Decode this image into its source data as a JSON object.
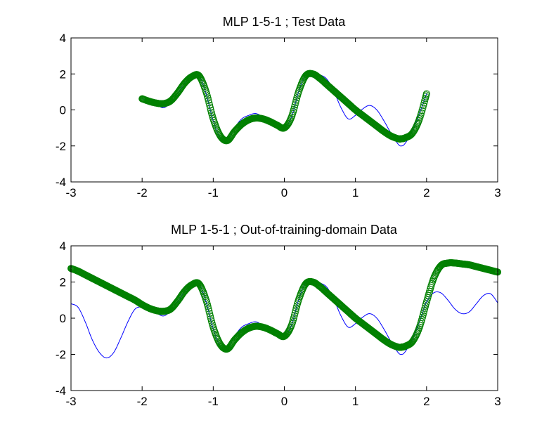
{
  "chart_data": [
    {
      "type": "line",
      "title": "MLP 1-5-1 ; Test Data",
      "xlabel": "",
      "ylabel": "",
      "xlim": [
        -3,
        3
      ],
      "ylim": [
        -4,
        4
      ],
      "xticks": [
        "-3",
        "-2",
        "-1",
        "0",
        "1",
        "2",
        "3"
      ],
      "yticks": [
        "-4",
        "-2",
        "0",
        "2",
        "4"
      ],
      "grid": false,
      "series": [
        {
          "kind": "line",
          "color": "#0000ff",
          "x": [
            -2.0,
            -1.9,
            -1.8,
            -1.7,
            -1.6,
            -1.5,
            -1.4,
            -1.3,
            -1.2,
            -1.1,
            -1.0,
            -0.9,
            -0.8,
            -0.7,
            -0.6,
            -0.5,
            -0.4,
            -0.3,
            -0.2,
            -0.1,
            0.0,
            0.1,
            0.2,
            0.3,
            0.4,
            0.5,
            0.6,
            0.7,
            0.8,
            0.9,
            1.0,
            1.1,
            1.2,
            1.3,
            1.4,
            1.5,
            1.6,
            1.65,
            1.7,
            1.8,
            1.9,
            2.0
          ],
          "y": [
            0.62,
            0.52,
            0.3,
            0.12,
            0.4,
            0.9,
            1.5,
            1.85,
            1.9,
            0.9,
            -0.6,
            -1.55,
            -1.7,
            -1.0,
            -0.5,
            -0.3,
            -0.2,
            -0.4,
            -0.6,
            -0.8,
            -1.0,
            -0.4,
            1.0,
            1.95,
            2.05,
            1.95,
            1.7,
            1.0,
            0.1,
            -0.5,
            -0.3,
            0.05,
            0.25,
            0.0,
            -0.6,
            -1.3,
            -1.9,
            -2.0,
            -1.85,
            -1.2,
            -0.2,
            0.9
          ]
        },
        {
          "kind": "scatter",
          "color": "#008000",
          "x": [
            -2.0,
            -1.9,
            -1.8,
            -1.7,
            -1.6,
            -1.5,
            -1.4,
            -1.3,
            -1.2,
            -1.1,
            -1.0,
            -0.9,
            -0.8,
            -0.7,
            -0.6,
            -0.5,
            -0.4,
            -0.3,
            -0.2,
            -0.1,
            0.0,
            0.1,
            0.2,
            0.3,
            0.4,
            0.5,
            0.6,
            0.7,
            0.8,
            0.9,
            1.0,
            1.1,
            1.2,
            1.3,
            1.4,
            1.5,
            1.6,
            1.65,
            1.7,
            1.8,
            1.9,
            2.0
          ],
          "y": [
            0.62,
            0.48,
            0.38,
            0.35,
            0.5,
            0.95,
            1.5,
            1.85,
            1.9,
            1.0,
            -0.5,
            -1.45,
            -1.7,
            -1.2,
            -0.8,
            -0.55,
            -0.45,
            -0.5,
            -0.65,
            -0.85,
            -1.0,
            -0.4,
            1.0,
            1.9,
            2.0,
            1.75,
            1.4,
            1.05,
            0.7,
            0.35,
            0.0,
            -0.3,
            -0.6,
            -0.9,
            -1.2,
            -1.45,
            -1.6,
            -1.6,
            -1.55,
            -1.3,
            -0.5,
            0.9
          ]
        }
      ]
    },
    {
      "type": "line",
      "title": "MLP 1-5-1 ; Out-of-training-domain Data",
      "xlabel": "",
      "ylabel": "",
      "xlim": [
        -3,
        3
      ],
      "ylim": [
        -4,
        4
      ],
      "xticks": [
        "-3",
        "-2",
        "-1",
        "0",
        "1",
        "2",
        "3"
      ],
      "yticks": [
        "-4",
        "-2",
        "0",
        "2",
        "4"
      ],
      "grid": false,
      "series": [
        {
          "kind": "line",
          "color": "#0000ff",
          "x": [
            -3.0,
            -2.9,
            -2.8,
            -2.7,
            -2.6,
            -2.5,
            -2.4,
            -2.3,
            -2.2,
            -2.1,
            -2.0,
            -1.9,
            -1.8,
            -1.7,
            -1.6,
            -1.5,
            -1.4,
            -1.3,
            -1.2,
            -1.1,
            -1.0,
            -0.9,
            -0.8,
            -0.7,
            -0.6,
            -0.5,
            -0.4,
            -0.3,
            -0.2,
            -0.1,
            0.0,
            0.1,
            0.2,
            0.3,
            0.4,
            0.5,
            0.6,
            0.7,
            0.8,
            0.9,
            1.0,
            1.1,
            1.2,
            1.3,
            1.4,
            1.5,
            1.6,
            1.65,
            1.7,
            1.8,
            1.9,
            2.0,
            2.1,
            2.2,
            2.3,
            2.4,
            2.5,
            2.6,
            2.7,
            2.8,
            2.9,
            3.0
          ],
          "y": [
            0.8,
            0.6,
            -0.2,
            -1.2,
            -1.9,
            -2.2,
            -1.9,
            -1.1,
            -0.2,
            0.5,
            0.62,
            0.52,
            0.3,
            0.12,
            0.4,
            0.9,
            1.5,
            1.85,
            1.9,
            0.9,
            -0.6,
            -1.55,
            -1.7,
            -1.0,
            -0.5,
            -0.3,
            -0.2,
            -0.4,
            -0.6,
            -0.8,
            -1.0,
            -0.4,
            1.0,
            1.95,
            2.05,
            1.95,
            1.7,
            1.0,
            0.1,
            -0.5,
            -0.3,
            0.05,
            0.25,
            0.0,
            -0.6,
            -1.3,
            -1.9,
            -2.0,
            -1.85,
            -1.2,
            -0.2,
            0.9,
            1.4,
            1.4,
            1.0,
            0.5,
            0.25,
            0.35,
            0.8,
            1.25,
            1.35,
            0.85
          ]
        },
        {
          "kind": "scatter",
          "color": "#008000",
          "x": [
            -3.0,
            -2.9,
            -2.8,
            -2.7,
            -2.6,
            -2.5,
            -2.4,
            -2.3,
            -2.2,
            -2.1,
            -2.0,
            -1.9,
            -1.8,
            -1.7,
            -1.6,
            -1.5,
            -1.4,
            -1.3,
            -1.2,
            -1.1,
            -1.0,
            -0.9,
            -0.8,
            -0.7,
            -0.6,
            -0.5,
            -0.4,
            -0.3,
            -0.2,
            -0.1,
            0.0,
            0.1,
            0.2,
            0.3,
            0.4,
            0.5,
            0.6,
            0.7,
            0.8,
            0.9,
            1.0,
            1.1,
            1.2,
            1.3,
            1.4,
            1.5,
            1.6,
            1.65,
            1.7,
            1.8,
            1.9,
            2.0,
            2.1,
            2.2,
            2.3,
            2.4,
            2.5,
            2.6,
            2.7,
            2.8,
            2.9,
            3.0
          ],
          "y": [
            2.75,
            2.6,
            2.4,
            2.2,
            2.0,
            1.8,
            1.6,
            1.4,
            1.2,
            1.0,
            0.75,
            0.55,
            0.42,
            0.38,
            0.5,
            0.95,
            1.5,
            1.85,
            1.9,
            1.0,
            -0.5,
            -1.45,
            -1.7,
            -1.2,
            -0.8,
            -0.55,
            -0.45,
            -0.5,
            -0.65,
            -0.85,
            -1.0,
            -0.4,
            1.0,
            1.9,
            2.0,
            1.75,
            1.4,
            1.05,
            0.7,
            0.35,
            0.0,
            -0.3,
            -0.6,
            -0.9,
            -1.2,
            -1.45,
            -1.6,
            -1.6,
            -1.55,
            -1.3,
            -0.5,
            0.9,
            2.2,
            2.9,
            3.05,
            3.05,
            3.0,
            2.95,
            2.85,
            2.75,
            2.65,
            2.55
          ]
        }
      ]
    }
  ]
}
